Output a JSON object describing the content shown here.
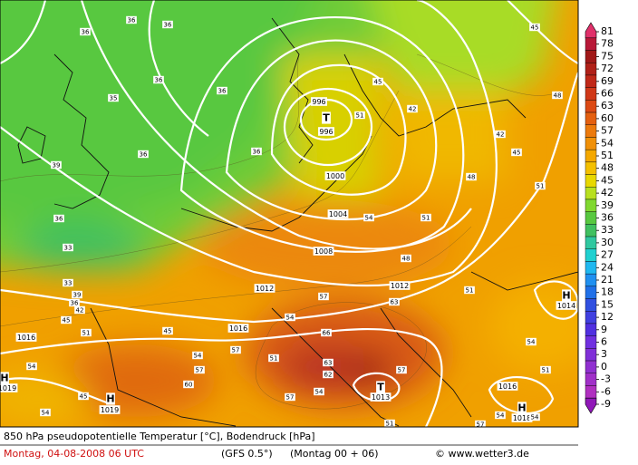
{
  "footer": {
    "title": "850 hPa pseudopotentielle Temperatur [°C], Bodendruck [hPa]",
    "date": "Montag, 04-08-2008  06 UTC",
    "model": "(GFS 0.5°)",
    "run": "(Montag 00 + 06)",
    "copyright": "© www.wetter3.de"
  },
  "legend": {
    "levels": [
      81,
      78,
      75,
      72,
      69,
      66,
      63,
      60,
      57,
      54,
      51,
      48,
      45,
      42,
      39,
      36,
      33,
      30,
      27,
      24,
      21,
      18,
      15,
      12,
      9,
      6,
      3,
      0,
      -3,
      -6,
      -9
    ],
    "colors": [
      "#e0306a",
      "#b81838",
      "#a01818",
      "#b02018",
      "#c02818",
      "#d03818",
      "#dc4a14",
      "#e46010",
      "#ec7a0c",
      "#f09008",
      "#f4a800",
      "#f4c000",
      "#e8d800",
      "#b8e020",
      "#80d830",
      "#58c840",
      "#40c060",
      "#30c8a0",
      "#20d0d0",
      "#20b8f0",
      "#2090f0",
      "#2070e8",
      "#3050e0",
      "#4040e0",
      "#5030e0",
      "#7030e0",
      "#8030d8",
      "#9030d0",
      "#a030c8",
      "#b030c0",
      "#9018b8"
    ]
  },
  "map": {
    "isobars": [
      996,
      996,
      1000,
      1004,
      1008,
      1012,
      1012,
      1016,
      1016,
      1019,
      1019,
      1013,
      1014,
      1016,
      1018
    ],
    "centers": [
      "T",
      "T",
      "H",
      "H",
      "H",
      "H"
    ],
    "temps": [
      36,
      36,
      36,
      35,
      36,
      36,
      39,
      36,
      36,
      36,
      33,
      33,
      39,
      36,
      42,
      45,
      51,
      54,
      57,
      63,
      66,
      63,
      62,
      57,
      54,
      57,
      51,
      57,
      54,
      57,
      60,
      45,
      54,
      54,
      45,
      48,
      51,
      54,
      48,
      45,
      42,
      48,
      45,
      42,
      45,
      51,
      51,
      51,
      54,
      57,
      51,
      54,
      51,
      54
    ]
  }
}
